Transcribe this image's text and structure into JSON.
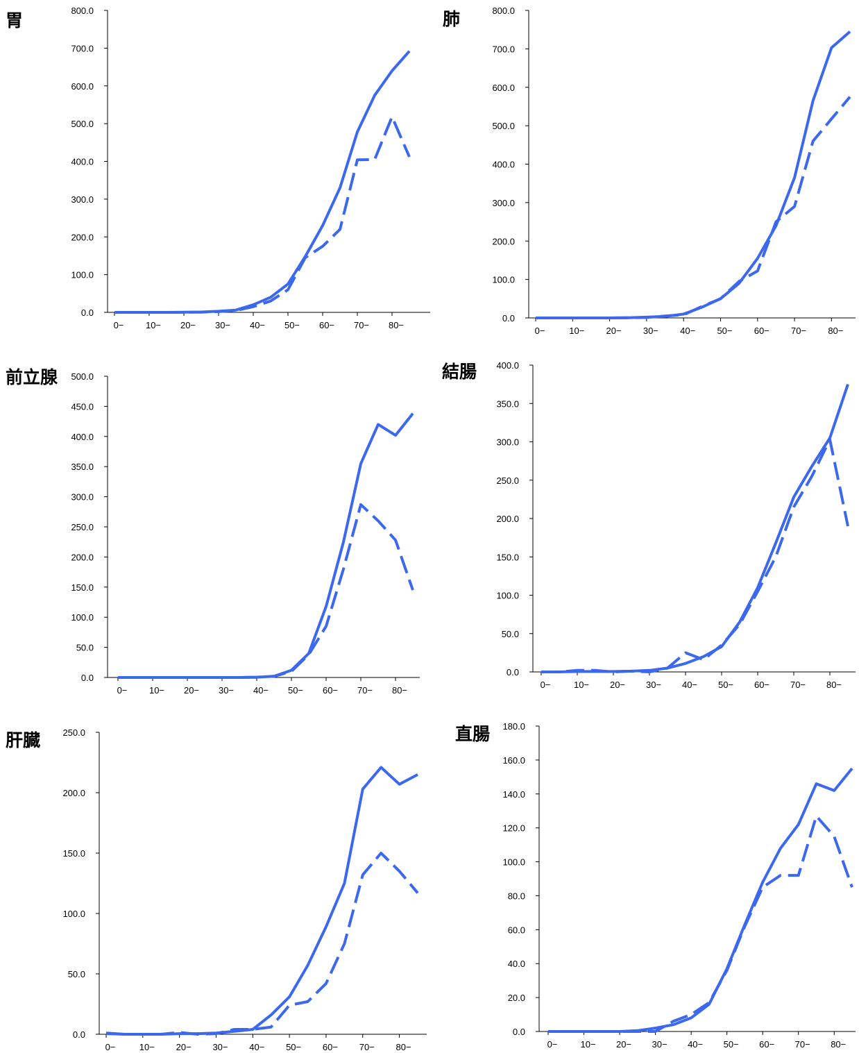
{
  "chart_data": [
    {
      "type": "line",
      "title": "胃",
      "ylim": [
        0,
        800
      ],
      "yticks": [
        "0.0",
        "100.0",
        "200.0",
        "300.0",
        "400.0",
        "500.0",
        "600.0",
        "700.0",
        "800.0"
      ],
      "xticks": [
        "0−",
        "10−",
        "20−",
        "30−",
        "40−",
        "50−",
        "60−",
        "70−",
        "80−"
      ],
      "categories": [
        "0−",
        "5−",
        "10−",
        "15−",
        "20−",
        "25−",
        "30−",
        "35−",
        "40−",
        "45−",
        "50−",
        "55−",
        "60−",
        "65−",
        "70−",
        "75−",
        "80−",
        "85−"
      ],
      "grid": false,
      "series": [
        {
          "style": "solid",
          "color": "#3c68f0",
          "values": [
            0.0,
            0.0,
            0.0,
            0.0,
            0.5,
            1.0,
            3.0,
            6.0,
            20.0,
            40.0,
            75.0,
            148.0,
            230.0,
            330.0,
            478.0,
            575.0,
            640.0,
            692.0
          ]
        },
        {
          "style": "dashed",
          "color": "#3c68f0",
          "values": [
            0.0,
            0.0,
            0.0,
            0.0,
            0.0,
            0.5,
            2.0,
            5.0,
            15.0,
            30.0,
            60.0,
            145.0,
            175.0,
            220.0,
            404.0,
            405.0,
            518.0,
            412.0
          ]
        }
      ]
    },
    {
      "type": "line",
      "title": "肺",
      "ylim": [
        0,
        800
      ],
      "yticks": [
        "0.0",
        "100.0",
        "200.0",
        "300.0",
        "400.0",
        "500.0",
        "600.0",
        "700.0",
        "800.0"
      ],
      "xticks": [
        "0−",
        "10−",
        "20−",
        "30−",
        "40−",
        "50−",
        "60−",
        "70−",
        "80−"
      ],
      "categories": [
        "0−",
        "5−",
        "10−",
        "15−",
        "20−",
        "25−",
        "30−",
        "35−",
        "40−",
        "45−",
        "50−",
        "55−",
        "60−",
        "65−",
        "70−",
        "75−",
        "80−",
        "85−"
      ],
      "grid": false,
      "series": [
        {
          "style": "solid",
          "color": "#3c68f0",
          "values": [
            0.0,
            0.0,
            0.0,
            0.0,
            0.0,
            0.5,
            2.0,
            4.0,
            10.0,
            28.0,
            50.0,
            90.0,
            155.0,
            240.0,
            365.0,
            565.0,
            703.0,
            745.0
          ]
        },
        {
          "style": "dashed",
          "color": "#3c68f0",
          "values": [
            0.0,
            0.0,
            0.0,
            0.0,
            0.0,
            0.5,
            1.0,
            5.0,
            8.0,
            30.0,
            50.0,
            95.0,
            122.0,
            250.0,
            290.0,
            460.0,
            518.0,
            575.0
          ]
        }
      ]
    },
    {
      "type": "line",
      "title": "前立腺",
      "ylim": [
        0,
        500
      ],
      "yticks": [
        "0.0",
        "50.0",
        "100.0",
        "150.0",
        "200.0",
        "250.0",
        "300.0",
        "350.0",
        "400.0",
        "450.0",
        "500.0"
      ],
      "xticks": [
        "0−",
        "10−",
        "20−",
        "30−",
        "40−",
        "50−",
        "60−",
        "70−",
        "80−"
      ],
      "categories": [
        "0−",
        "5−",
        "10−",
        "15−",
        "20−",
        "25−",
        "30−",
        "35−",
        "40−",
        "45−",
        "50−",
        "55−",
        "60−",
        "65−",
        "70−",
        "75−",
        "80−",
        "85−"
      ],
      "grid": false,
      "series": [
        {
          "style": "solid",
          "color": "#3c68f0",
          "values": [
            0.0,
            0.0,
            0.0,
            0.0,
            0.0,
            0.0,
            0.0,
            0.0,
            0.5,
            2.0,
            12.0,
            40.0,
            118.0,
            225.0,
            355.0,
            420.0,
            402.0,
            438.0
          ]
        },
        {
          "style": "dashed",
          "color": "#3c68f0",
          "values": [
            0.0,
            0.0,
            0.0,
            0.0,
            0.0,
            0.0,
            0.0,
            0.0,
            0.5,
            2.0,
            10.0,
            38.0,
            85.0,
            180.0,
            287.0,
            260.0,
            228.0,
            145.0
          ]
        }
      ]
    },
    {
      "type": "line",
      "title": "結腸",
      "ylim": [
        0,
        400
      ],
      "yticks": [
        "0.0",
        "50.0",
        "100.0",
        "150.0",
        "200.0",
        "250.0",
        "300.0",
        "350.0",
        "400.0"
      ],
      "xticks": [
        "0−",
        "10−",
        "20−",
        "30−",
        "40−",
        "50−",
        "60−",
        "70−",
        "80−"
      ],
      "categories": [
        "0−",
        "5−",
        "10−",
        "15−",
        "20−",
        "25−",
        "30−",
        "35−",
        "40−",
        "45−",
        "50−",
        "55−",
        "60−",
        "65−",
        "70−",
        "75−",
        "80−",
        "85−"
      ],
      "grid": false,
      "series": [
        {
          "style": "solid",
          "color": "#3c68f0",
          "values": [
            0.0,
            0.0,
            0.5,
            0.5,
            0.5,
            1.0,
            2.0,
            5.0,
            11.0,
            20.0,
            33.0,
            65.0,
            110.0,
            168.0,
            228.0,
            268.0,
            305.0,
            375.0
          ]
        },
        {
          "style": "dashed",
          "color": "#3c68f0",
          "values": [
            0.0,
            0.0,
            2.0,
            2.0,
            0.0,
            1.0,
            0.0,
            5.0,
            25.0,
            16.0,
            35.0,
            62.0,
            105.0,
            150.0,
            215.0,
            255.0,
            303.0,
            190.0
          ]
        }
      ]
    },
    {
      "type": "line",
      "title": "肝臓",
      "ylim": [
        0,
        250
      ],
      "yticks": [
        "0.0",
        "50.0",
        "100.0",
        "150.0",
        "200.0",
        "250.0"
      ],
      "xticks": [
        "0−",
        "10−",
        "20−",
        "30−",
        "40−",
        "50−",
        "60−",
        "70−",
        "80−"
      ],
      "categories": [
        "0−",
        "5−",
        "10−",
        "15−",
        "20−",
        "25−",
        "30−",
        "35−",
        "40−",
        "45−",
        "50−",
        "55−",
        "60−",
        "65−",
        "70−",
        "75−",
        "80−",
        "85−"
      ],
      "grid": false,
      "series": [
        {
          "style": "solid",
          "color": "#3c68f0",
          "values": [
            0.5,
            0.0,
            0.0,
            0.0,
            0.5,
            0.5,
            1.0,
            2.5,
            4.0,
            16.0,
            31.0,
            57.0,
            89.0,
            125.0,
            203.0,
            221.0,
            207.0,
            215.0
          ]
        },
        {
          "style": "dashed",
          "color": "#3c68f0",
          "values": [
            1.0,
            0.0,
            0.0,
            0.0,
            1.5,
            0.0,
            0.5,
            4.0,
            4.0,
            6.0,
            24.0,
            27.0,
            42.0,
            75.0,
            132.0,
            150.0,
            135.0,
            117.0
          ]
        }
      ]
    },
    {
      "type": "line",
      "title": "直腸",
      "ylim": [
        0,
        180
      ],
      "yticks": [
        "0.0",
        "20.0",
        "40.0",
        "60.0",
        "80.0",
        "100.0",
        "120.0",
        "140.0",
        "160.0",
        "180.0"
      ],
      "xticks": [
        "0−",
        "10−",
        "20−",
        "30−",
        "40−",
        "50−",
        "60−",
        "70−",
        "80−"
      ],
      "categories": [
        "0−",
        "5−",
        "10−",
        "15−",
        "20−",
        "25−",
        "30−",
        "35−",
        "40−",
        "45−",
        "50−",
        "55−",
        "60−",
        "65−",
        "70−",
        "75−",
        "80−",
        "85−"
      ],
      "grid": false,
      "series": [
        {
          "style": "solid",
          "color": "#3c68f0",
          "values": [
            0.0,
            0.0,
            0.0,
            0.0,
            0.0,
            0.5,
            2.0,
            4.0,
            8.0,
            16.0,
            37.0,
            63.0,
            88.0,
            108.0,
            122.0,
            146.0,
            142.0,
            155.0
          ]
        },
        {
          "style": "dashed",
          "color": "#3c68f0",
          "values": [
            0.0,
            0.0,
            0.0,
            0.0,
            0.0,
            0.0,
            0.0,
            6.0,
            10.0,
            17.0,
            36.0,
            62.0,
            85.0,
            92.0,
            92.0,
            127.0,
            115.0,
            85.0
          ]
        }
      ]
    }
  ]
}
